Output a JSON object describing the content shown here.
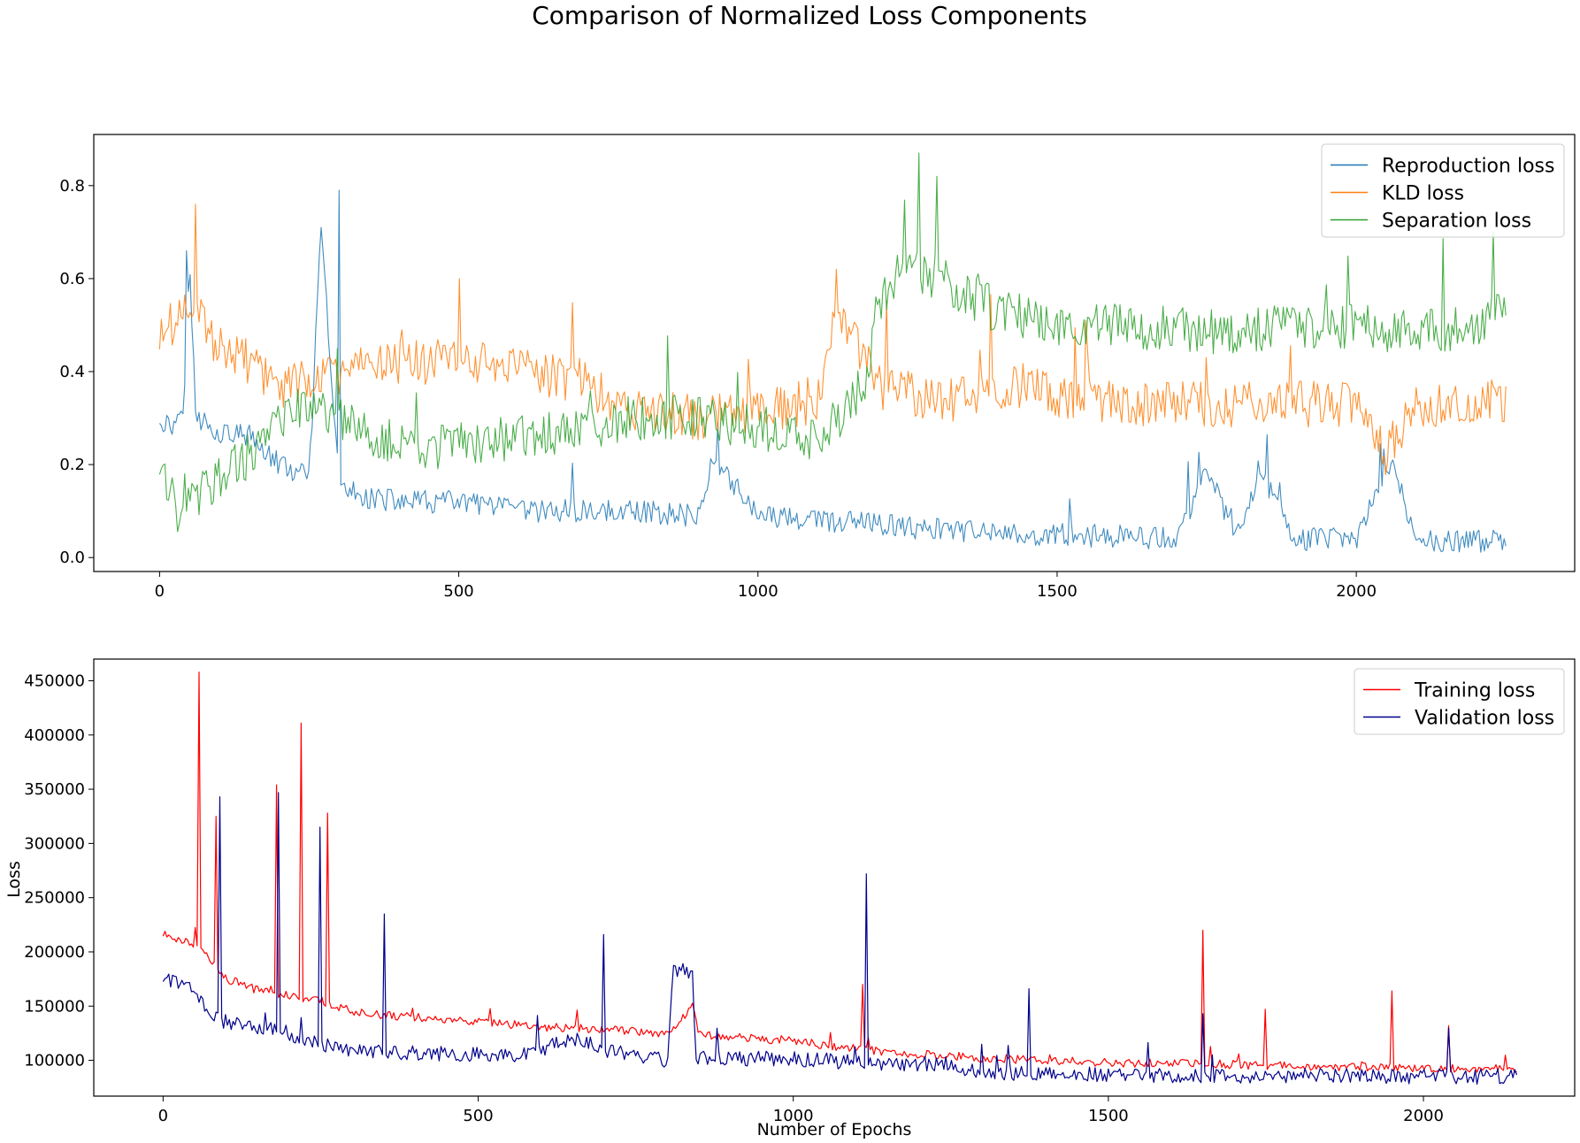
{
  "figure_title": "Comparison of Normalized Loss Components",
  "chart_data": [
    {
      "type": "line",
      "title": "",
      "xlabel": "",
      "ylabel": "",
      "xlim": [
        -110,
        2365
      ],
      "ylim": [
        -0.03,
        0.91
      ],
      "xticks": [
        0,
        500,
        1000,
        1500,
        2000
      ],
      "xtick_labels": [
        "0",
        "500",
        "1000",
        "1500",
        "2000"
      ],
      "yticks": [
        0.0,
        0.2,
        0.4,
        0.6,
        0.8
      ],
      "ytick_labels": [
        "0.0",
        "0.2",
        "0.4",
        "0.6",
        "0.8"
      ],
      "legend_position": "top-right",
      "grid": false,
      "series": [
        {
          "name": "Reproduction loss",
          "color": "#1f77b4",
          "x": [
            0,
            20,
            40,
            50,
            60,
            80,
            100,
            150,
            200,
            250,
            270,
            300,
            350,
            400,
            500,
            600,
            700,
            800,
            900,
            925,
            1000,
            1100,
            1200,
            1300,
            1400,
            1500,
            1600,
            1700,
            1750,
            1800,
            1840,
            1900,
            2000,
            2060,
            2100,
            2150,
            2200,
            2250
          ],
          "values": [
            0.3,
            0.28,
            0.33,
            0.66,
            0.3,
            0.29,
            0.27,
            0.26,
            0.2,
            0.17,
            0.71,
            0.15,
            0.13,
            0.12,
            0.12,
            0.1,
            0.1,
            0.1,
            0.09,
            0.22,
            0.09,
            0.08,
            0.07,
            0.06,
            0.05,
            0.05,
            0.045,
            0.04,
            0.19,
            0.04,
            0.18,
            0.04,
            0.04,
            0.21,
            0.035,
            0.035,
            0.035,
            0.04
          ],
          "peaks": [
            [
              45,
              0.66
            ],
            [
              270,
              0.71
            ],
            [
              300,
              0.79
            ],
            [
              1750,
              0.19
            ],
            [
              1840,
              0.18
            ],
            [
              2060,
              0.21
            ]
          ],
          "noise": 0.025
        },
        {
          "name": "KLD loss",
          "color": "#ff7f0e",
          "x": [
            0,
            50,
            100,
            150,
            200,
            300,
            400,
            500,
            600,
            700,
            750,
            800,
            900,
            1000,
            1100,
            1130,
            1200,
            1300,
            1400,
            1450,
            1500,
            1600,
            1700,
            1800,
            1900,
            2000,
            2050,
            2100,
            2200,
            2250
          ],
          "values": [
            0.47,
            0.55,
            0.45,
            0.42,
            0.36,
            0.4,
            0.42,
            0.42,
            0.4,
            0.38,
            0.34,
            0.32,
            0.3,
            0.31,
            0.34,
            0.56,
            0.37,
            0.34,
            0.34,
            0.38,
            0.34,
            0.33,
            0.33,
            0.33,
            0.33,
            0.33,
            0.22,
            0.33,
            0.33,
            0.34
          ],
          "peaks": [
            [
              60,
              0.76
            ],
            [
              500,
              0.6
            ],
            [
              1130,
              0.62
            ]
          ],
          "noise": 0.05
        },
        {
          "name": "Separation loss",
          "color": "#2ca02c",
          "x": [
            0,
            30,
            60,
            100,
            150,
            200,
            250,
            300,
            400,
            500,
            600,
            700,
            800,
            900,
            1000,
            1100,
            1150,
            1180,
            1200,
            1250,
            1300,
            1400,
            1500,
            1600,
            1700,
            1800,
            1900,
            2000,
            2100,
            2200,
            2250
          ],
          "values": [
            0.2,
            0.1,
            0.13,
            0.18,
            0.22,
            0.3,
            0.34,
            0.3,
            0.24,
            0.24,
            0.26,
            0.28,
            0.3,
            0.3,
            0.28,
            0.25,
            0.32,
            0.38,
            0.55,
            0.63,
            0.6,
            0.53,
            0.5,
            0.5,
            0.49,
            0.48,
            0.5,
            0.5,
            0.48,
            0.5,
            0.53
          ],
          "peaks": [
            [
              1270,
              0.87
            ],
            [
              1300,
              0.82
            ],
            [
              2230,
              0.7
            ]
          ],
          "noise": 0.05
        }
      ]
    },
    {
      "type": "line",
      "title": "",
      "xlabel": "Number of Epochs",
      "ylabel": "Loss",
      "xlim": [
        -110,
        2240
      ],
      "ylim": [
        67000,
        470000
      ],
      "xticks": [
        0,
        500,
        1000,
        1500,
        2000
      ],
      "xtick_labels": [
        "0",
        "500",
        "1000",
        "1500",
        "2000"
      ],
      "yticks": [
        100000,
        150000,
        200000,
        250000,
        300000,
        350000,
        400000,
        450000
      ],
      "ytick_labels": [
        "100000",
        "150000",
        "200000",
        "250000",
        "300000",
        "350000",
        "400000",
        "450000"
      ],
      "legend_position": "top-right",
      "grid": false,
      "series": [
        {
          "name": "Training loss",
          "color": "#ff0000",
          "x": [
            0,
            50,
            60,
            80,
            100,
            150,
            200,
            250,
            300,
            350,
            400,
            450,
            500,
            550,
            600,
            650,
            700,
            750,
            800,
            840,
            850,
            900,
            950,
            1000,
            1050,
            1100,
            1150,
            1200,
            1250,
            1300,
            1400,
            1500,
            1600,
            1700,
            1800,
            1900,
            2000,
            2150
          ],
          "values": [
            216000,
            208000,
            200000,
            190000,
            175000,
            165000,
            160000,
            155000,
            145000,
            142000,
            140000,
            137000,
            135000,
            133000,
            131000,
            130000,
            128000,
            127000,
            125000,
            150000,
            124000,
            122000,
            120000,
            118000,
            114000,
            111000,
            108000,
            106000,
            104000,
            102000,
            100000,
            98000,
            97000,
            96000,
            95000,
            94000,
            93000,
            92500
          ],
          "peaks": [
            [
              58,
              458000
            ],
            [
              220,
              411000
            ],
            [
              180,
              354000
            ],
            [
              260,
              328000
            ],
            [
              85,
              325000
            ],
            [
              1650,
              220000
            ],
            [
              1950,
              164000
            ],
            [
              1110,
              170000
            ],
            [
              1750,
              147000
            ],
            [
              2040,
              132000
            ]
          ],
          "noise": 4000
        },
        {
          "name": "Validation loss",
          "color": "#00008b",
          "x": [
            0,
            50,
            80,
            100,
            150,
            200,
            250,
            300,
            350,
            400,
            450,
            500,
            550,
            600,
            650,
            700,
            750,
            800,
            810,
            840,
            845,
            900,
            1000,
            1050,
            1100,
            1200,
            1260,
            1270,
            1300,
            1400,
            1500,
            1600,
            1700,
            1800,
            1900,
            2000,
            2150
          ],
          "values": [
            175000,
            165000,
            140000,
            135000,
            130000,
            125000,
            115000,
            110000,
            108000,
            107000,
            106000,
            105000,
            104000,
            110000,
            120000,
            110000,
            103000,
            100000,
            185000,
            180000,
            103000,
            102000,
            101000,
            100000,
            98000,
            97000,
            96000,
            90000,
            89000,
            88000,
            87000,
            86000,
            86000,
            86000,
            86000,
            85000,
            85000
          ],
          "peaks": [
            [
              90,
              343000
            ],
            [
              182,
              347000
            ],
            [
              250,
              315000
            ],
            [
              1115,
              272000
            ],
            [
              350,
              235000
            ],
            [
              700,
              216000
            ],
            [
              1375,
              166000
            ],
            [
              1650,
              143000
            ],
            [
              2040,
              130000
            ]
          ],
          "noise": 7000
        }
      ]
    }
  ]
}
